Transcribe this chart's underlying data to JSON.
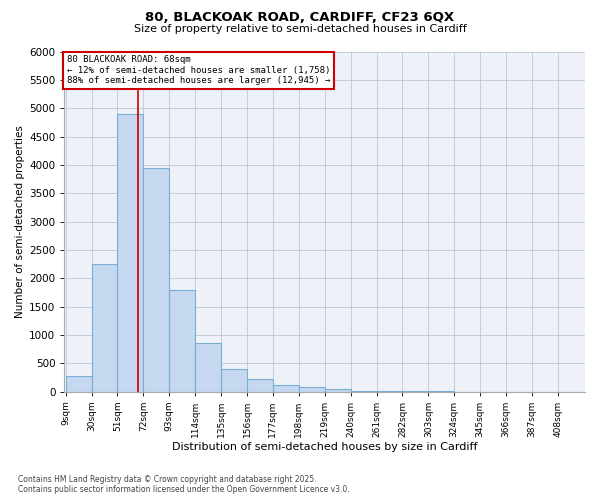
{
  "title_line1": "80, BLACKOAK ROAD, CARDIFF, CF23 6QX",
  "title_line2": "Size of property relative to semi-detached houses in Cardiff",
  "xlabel": "Distribution of semi-detached houses by size in Cardiff",
  "ylabel": "Number of semi-detached properties",
  "footer_line1": "Contains HM Land Registry data © Crown copyright and database right 2025.",
  "footer_line2": "Contains public sector information licensed under the Open Government Licence v3.0.",
  "annotation_line1": "80 BLACKOAK ROAD: 68sqm",
  "annotation_line2": "← 12% of semi-detached houses are smaller (1,758)",
  "annotation_line3": "88% of semi-detached houses are larger (12,945) →",
  "property_size": 68,
  "bar_color": "#c5d8f0",
  "bar_edge_color": "#7aadd4",
  "vline_color": "#cc0000",
  "background_color": "#eef2f8",
  "annotation_box_edgecolor": "#cc0000",
  "bins": [
    9,
    30,
    51,
    72,
    93,
    114,
    135,
    156,
    177,
    198,
    219,
    240,
    261,
    282,
    303,
    324,
    345,
    366,
    387,
    408,
    429
  ],
  "counts": [
    280,
    2250,
    4900,
    3950,
    1800,
    850,
    400,
    220,
    110,
    75,
    50,
    10,
    5,
    2,
    1,
    0,
    0,
    0,
    0,
    0
  ],
  "ylim": [
    0,
    6000
  ],
  "yticks": [
    0,
    500,
    1000,
    1500,
    2000,
    2500,
    3000,
    3500,
    4000,
    4500,
    5000,
    5500,
    6000
  ]
}
